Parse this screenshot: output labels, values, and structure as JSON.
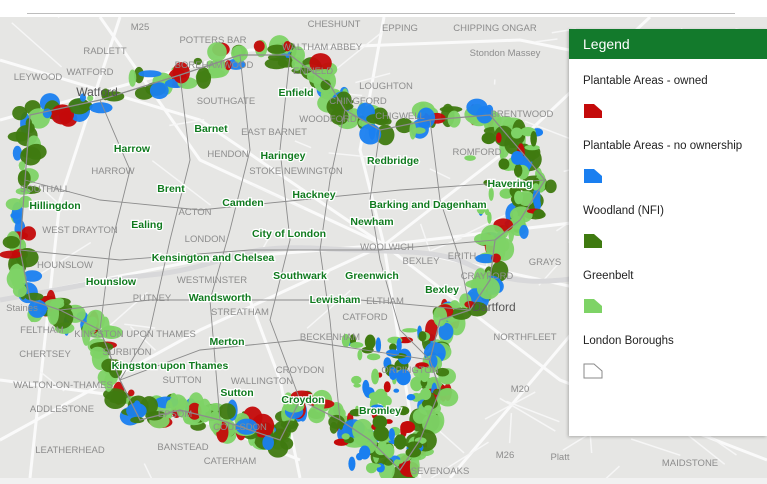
{
  "legend": {
    "title": "Legend",
    "items": [
      {
        "label": "Plantable Areas - owned",
        "color": "#c40a0a",
        "icon": "filled-polygon"
      },
      {
        "label": "Plantable Areas - no ownership",
        "color": "#1a7ff0",
        "icon": "filled-polygon"
      },
      {
        "label": "Woodland (NFI)",
        "color": "#3f7a10",
        "icon": "filled-polygon"
      },
      {
        "label": "Greenbelt",
        "color": "#7ed366",
        "icon": "filled-polygon"
      },
      {
        "label": "London Boroughs",
        "color": "#ffffff",
        "icon": "outline-polygon"
      }
    ]
  },
  "towns": [
    "M25",
    "CHESHUNT",
    "EPPING",
    "CHIPPING ONGAR",
    "POTTERS BAR",
    "WALTHAM ABBEY",
    "RADLETT",
    "Stondon Massey",
    "WATFORD",
    "LEYWOOD",
    "BOREHAMWOOD",
    "ENFIELD",
    "LOUGHTON",
    "BRENTWOOD",
    "CHIGWELL",
    "SOUTHGATE",
    "EAST BARNET",
    "WOODFORD",
    "HENDON",
    "CHINGFORD",
    "HARROW",
    "ROMFORD",
    "STOKE NEWINGTON",
    "LONDON",
    "WESTMINSTER",
    "WOOLWICH",
    "ERITH",
    "BEXLEY",
    "CRAYFORD",
    "GRAYS",
    "FELTHAM",
    "Staines",
    "KINGSTON UPON THAMES",
    "SURBITON",
    "CHERTSEY",
    "ELTHAM",
    "CATFORD",
    "BECKENHAM",
    "STREATHAM",
    "PUTNEY",
    "NORTHFLEET",
    "CROYDON",
    "ADDLESTONE",
    "LEATHERHEAD",
    "BANSTEAD",
    "EPSOM",
    "COULSDON",
    "CATERHAM",
    "WALLINGTON",
    "SEVENOAKS",
    "Platt",
    "MAIDSTONE",
    "M26",
    "M20",
    "WALTON-ON-THAMES",
    "Watford",
    "Dartford",
    "SUTTON",
    "HOUNSLOW",
    "WEST DRAYTON",
    "SOUTHALL",
    "ACTON",
    "ORPINGTON"
  ],
  "boroughs": [
    "Enfield",
    "Barnet",
    "Harrow",
    "Haringey",
    "Redbridge",
    "Brent",
    "Camden",
    "Hackney",
    "Havering",
    "Hillingdon",
    "Barking and Dagenham",
    "Ealing",
    "Newham",
    "City of London",
    "Kensington and Chelsea",
    "Southwark",
    "Greenwich",
    "Hounslow",
    "Wandsworth",
    "Lewisham",
    "Bexley",
    "Merton",
    "Kingston upon Thames",
    "Sutton",
    "Croydon",
    "Bromley"
  ]
}
